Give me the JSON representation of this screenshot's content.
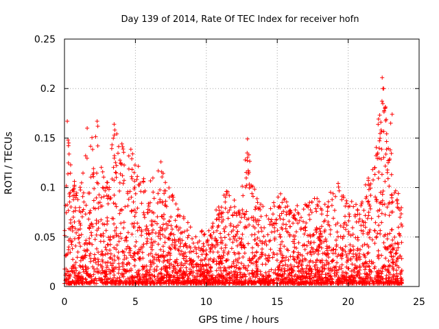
{
  "chart_data": {
    "type": "scatter",
    "title": "Day 139 of 2014, Rate Of TEC Index for receiver hofn",
    "xlabel": "GPS time / hours",
    "ylabel": "ROTI / TECUs",
    "xlim": [
      0,
      25
    ],
    "ylim": [
      0,
      0.25
    ],
    "grid": true,
    "marker": "+",
    "marker_color": "#ff0000",
    "xticks": [
      0,
      5,
      10,
      15,
      20,
      25
    ],
    "xtick_labels": [
      "0",
      "5",
      "10",
      "15",
      "20",
      "25"
    ],
    "yticks": [
      0,
      0.05,
      0.1,
      0.15,
      0.2,
      0.25
    ],
    "ytick_labels": [
      "0",
      "0.05",
      "0.1",
      "0.15",
      "0.2",
      "0.25"
    ],
    "series": [
      {
        "name": "ROTI",
        "x_range": [
          0,
          23.8
        ],
        "typical_floor": 0.01,
        "envelope": [
          [
            0.0,
            0.06
          ],
          [
            0.25,
            0.15
          ],
          [
            0.5,
            0.12
          ],
          [
            1.0,
            0.09
          ],
          [
            1.5,
            0.14
          ],
          [
            2.3,
            0.165
          ],
          [
            2.8,
            0.11
          ],
          [
            3.6,
            0.163
          ],
          [
            4.3,
            0.14
          ],
          [
            5.0,
            0.14
          ],
          [
            6.0,
            0.11
          ],
          [
            6.8,
            0.125
          ],
          [
            8.0,
            0.08
          ],
          [
            9.0,
            0.06
          ],
          [
            10.0,
            0.055
          ],
          [
            11.0,
            0.09
          ],
          [
            11.5,
            0.1
          ],
          [
            12.3,
            0.08
          ],
          [
            12.9,
            0.15
          ],
          [
            13.5,
            0.09
          ],
          [
            14.5,
            0.08
          ],
          [
            15.5,
            0.1
          ],
          [
            16.5,
            0.08
          ],
          [
            17.5,
            0.09
          ],
          [
            18.5,
            0.09
          ],
          [
            19.2,
            0.11
          ],
          [
            20.0,
            0.085
          ],
          [
            21.0,
            0.09
          ],
          [
            21.5,
            0.12
          ],
          [
            22.1,
            0.165
          ],
          [
            22.4,
            0.21
          ],
          [
            22.8,
            0.17
          ],
          [
            23.2,
            0.12
          ],
          [
            23.8,
            0.08
          ]
        ],
        "sample_points": [
          [
            0.2,
            0.167
          ],
          [
            0.25,
            0.148
          ],
          [
            0.3,
            0.145
          ],
          [
            1.6,
            0.16
          ],
          [
            2.3,
            0.167
          ],
          [
            2.35,
            0.162
          ],
          [
            3.5,
            0.164
          ],
          [
            3.55,
            0.158
          ],
          [
            4.8,
            0.134
          ],
          [
            6.8,
            0.126
          ],
          [
            12.9,
            0.149
          ],
          [
            13.0,
            0.133
          ],
          [
            22.4,
            0.211
          ],
          [
            22.45,
            0.2
          ],
          [
            22.5,
            0.2
          ],
          [
            22.6,
            0.18
          ],
          [
            22.3,
            0.166
          ],
          [
            23.1,
            0.174
          ],
          [
            23.0,
            0.165
          ]
        ]
      }
    ]
  }
}
